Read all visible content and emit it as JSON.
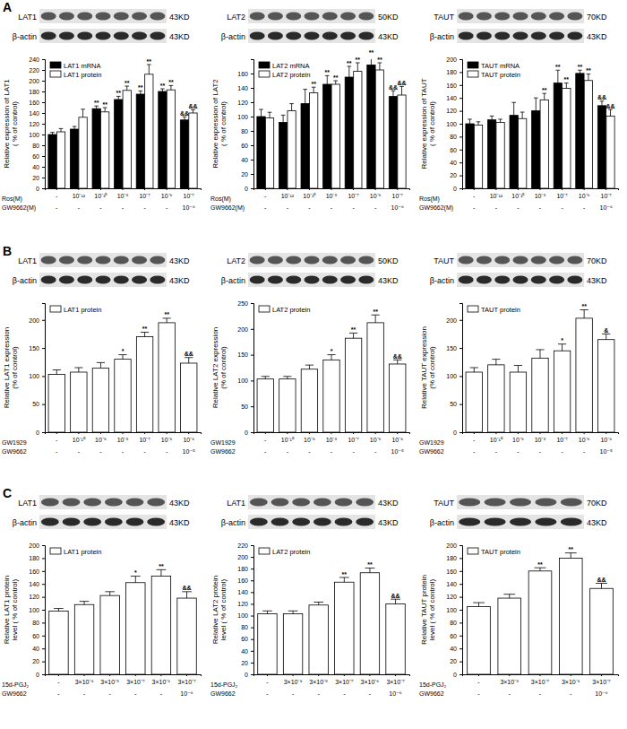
{
  "panel_labels": [
    "A",
    "B",
    "C"
  ],
  "chart_data": [
    {
      "type": "bar",
      "blots": [
        {
          "label": "LAT1",
          "size": "43KD"
        },
        {
          "label": "β-actin",
          "size": "43KD"
        }
      ],
      "ylabel": [
        "Relative expression of LAT1",
        "( % of control)"
      ],
      "ylim": [
        0,
        240
      ],
      "yticks": [
        0,
        20,
        40,
        60,
        80,
        100,
        120,
        140,
        160,
        180,
        200,
        220,
        240
      ],
      "x_titles": [
        "Ros(M)",
        "GW9662(M)"
      ],
      "categories": [
        "-",
        "10⁻¹²",
        "10⁻¹⁰",
        "10⁻⁸",
        "10⁻⁷",
        "10⁻⁶",
        "10⁻⁷"
      ],
      "categories_2": [
        "-",
        "-",
        "-",
        "-",
        "-",
        "-",
        "10⁻⁶"
      ],
      "legend": "top-left",
      "series": [
        {
          "name": "LAT1 mRNA",
          "color": "#000000",
          "values": [
            100,
            110,
            148,
            165,
            175,
            180,
            127
          ],
          "errors": [
            4,
            5,
            5,
            6,
            6,
            5,
            6
          ],
          "sig": [
            null,
            null,
            "**",
            "**",
            "**",
            "**",
            "&&"
          ]
        },
        {
          "name": "LAT1 protein",
          "color": "#ffffff",
          "values": [
            105,
            132,
            142,
            182,
            212,
            183,
            140
          ],
          "errors": [
            6,
            15,
            8,
            8,
            18,
            8,
            6
          ],
          "sig": [
            null,
            null,
            "**",
            "**",
            "**",
            "**",
            "&&"
          ]
        }
      ]
    },
    {
      "type": "bar",
      "blots": [
        {
          "label": "LAT2",
          "size": "50KD"
        },
        {
          "label": "β-actin",
          "size": "43KD"
        }
      ],
      "ylabel": [
        "Relative expression of LAT2",
        "( % of control)"
      ],
      "ylim": [
        0,
        180
      ],
      "yticks": [
        0,
        20,
        40,
        60,
        80,
        100,
        120,
        140,
        160
      ],
      "x_titles": [
        "Ros(M)",
        "GW9662(M)"
      ],
      "categories": [
        "-",
        "10⁻¹²",
        "10⁻¹⁰",
        "10⁻⁸",
        "10⁻⁷",
        "10⁻⁶",
        "10⁻⁷"
      ],
      "categories_2": [
        "-",
        "-",
        "-",
        "-",
        "-",
        "-",
        "10⁻⁶"
      ],
      "legend": "top-left",
      "series": [
        {
          "name": "LAT2 mRNA",
          "color": "#000000",
          "values": [
            100,
            92,
            118,
            145,
            155,
            172,
            128
          ],
          "errors": [
            10,
            10,
            20,
            12,
            15,
            12,
            8
          ],
          "sig": [
            null,
            null,
            null,
            "**",
            "**",
            "**",
            "&&"
          ]
        },
        {
          "name": "LAT2 protein",
          "color": "#ffffff",
          "values": [
            98,
            108,
            133,
            145,
            163,
            165,
            130
          ],
          "errors": [
            8,
            10,
            8,
            5,
            12,
            10,
            12
          ],
          "sig": [
            null,
            null,
            "**",
            "**",
            "**",
            "**",
            "&&"
          ]
        }
      ]
    },
    {
      "type": "bar",
      "blots": [
        {
          "label": "TAUT",
          "size": "70KD"
        },
        {
          "label": "β-actin",
          "size": "43KD"
        }
      ],
      "ylabel": [
        "Relative expression of TAUT",
        "( % of control)"
      ],
      "ylim": [
        0,
        200
      ],
      "yticks": [
        0,
        20,
        40,
        60,
        80,
        100,
        120,
        140,
        160,
        180,
        200
      ],
      "x_titles": [
        "Ros(M)",
        "GW9662(M)"
      ],
      "categories": [
        "-",
        "10⁻¹²",
        "10⁻¹⁰",
        "10⁻⁸",
        "10⁻⁷",
        "10⁻⁶",
        "10⁻⁷"
      ],
      "categories_2": [
        "-",
        "-",
        "-",
        "-",
        "-",
        "-",
        "10⁻⁶"
      ],
      "legend": "top-left",
      "series": [
        {
          "name": "TAUT mRNA",
          "color": "#000000",
          "values": [
            100,
            106,
            113,
            120,
            163,
            178,
            128
          ],
          "errors": [
            7,
            6,
            20,
            20,
            20,
            5,
            7
          ],
          "sig": [
            null,
            null,
            null,
            null,
            "**",
            "**",
            "&&"
          ]
        },
        {
          "name": "TAUT protein",
          "color": "#ffffff",
          "values": [
            98,
            102,
            108,
            137,
            155,
            167,
            112
          ],
          "errors": [
            5,
            5,
            10,
            10,
            8,
            10,
            10
          ],
          "sig": [
            null,
            null,
            null,
            "**",
            "**",
            "**",
            "&&"
          ]
        }
      ]
    },
    {
      "type": "bar",
      "blots": [
        {
          "label": "LAT1",
          "size": "43KD"
        },
        {
          "label": "β-actin",
          "size": "43KD"
        }
      ],
      "ylabel": [
        "Relative LAT1 expression",
        "(% of control)"
      ],
      "ylim": [
        0,
        230
      ],
      "yticks": [
        0,
        50,
        100,
        150,
        200
      ],
      "x_titles": [
        "GW1929",
        "GW9662"
      ],
      "categories": [
        "-",
        "10⁻¹⁰",
        "10⁻⁹",
        "10⁻⁸",
        "10⁻⁷",
        "10⁻⁶",
        "10⁻⁶"
      ],
      "categories_2": [
        "-",
        "-",
        "-",
        "-",
        "-",
        "-",
        "10⁻⁵"
      ],
      "legend": "top-left",
      "series": [
        {
          "name": "LAT1 protein",
          "color": "#ffffff",
          "values": [
            103,
            107,
            114,
            130,
            170,
            195,
            123
          ],
          "errors": [
            8,
            8,
            10,
            8,
            8,
            8,
            10
          ],
          "sig": [
            null,
            null,
            null,
            "*",
            "**",
            "**",
            "&&"
          ]
        }
      ]
    },
    {
      "type": "bar",
      "blots": [
        {
          "label": "LAT2",
          "size": "50KD"
        },
        {
          "label": "β-actin",
          "size": "43KD"
        }
      ],
      "ylabel": [
        "Relative LAT2 expression",
        "(% of control)"
      ],
      "ylim": [
        0,
        250
      ],
      "yticks": [
        0,
        50,
        100,
        150,
        200,
        250
      ],
      "x_titles": [
        "GW1929",
        "GW9662"
      ],
      "categories": [
        "-",
        "10⁻¹⁰",
        "10⁻⁹",
        "10⁻⁸",
        "10⁻⁷",
        "10⁻⁶",
        "10⁻⁶"
      ],
      "categories_2": [
        "-",
        "-",
        "-",
        "-",
        "-",
        "-",
        "10⁻⁵"
      ],
      "legend": "top-left",
      "series": [
        {
          "name": "LAT2 protein",
          "color": "#ffffff",
          "values": [
            103,
            103,
            122,
            140,
            182,
            212,
            132
          ],
          "errors": [
            5,
            5,
            8,
            10,
            10,
            15,
            8
          ],
          "sig": [
            null,
            null,
            null,
            "*",
            "**",
            "**",
            "&&"
          ]
        }
      ]
    },
    {
      "type": "bar",
      "blots": [
        {
          "label": "TAUT",
          "size": "70KD"
        },
        {
          "label": "β-actin",
          "size": "43KD"
        }
      ],
      "ylabel": [
        "Relative TAUT expression",
        "(% of control)"
      ],
      "ylim": [
        0,
        230
      ],
      "yticks": [
        0,
        50,
        100,
        150,
        200
      ],
      "x_titles": [
        "GW1929",
        "GW9662"
      ],
      "categories": [
        "-",
        "10⁻¹⁰",
        "10⁻⁹",
        "10⁻⁸",
        "10⁻⁷",
        "10⁻⁶",
        "10⁻⁶"
      ],
      "categories_2": [
        "-",
        "-",
        "-",
        "-",
        "-",
        "-",
        "10⁻⁵"
      ],
      "legend": "top-left",
      "series": [
        {
          "name": "TAUT protein",
          "color": "#ffffff",
          "values": [
            107,
            120,
            107,
            132,
            145,
            203,
            165
          ],
          "errors": [
            8,
            10,
            12,
            15,
            12,
            15,
            10
          ],
          "sig": [
            null,
            null,
            null,
            null,
            "*",
            "**",
            "&"
          ]
        }
      ]
    },
    {
      "type": "bar",
      "blots": [
        {
          "label": "LAT1",
          "size": "43KD"
        },
        {
          "label": "β-actin",
          "size": "43KD"
        }
      ],
      "ylabel": [
        "Relative LAT1 protein",
        "level ( % of control)"
      ],
      "ylim": [
        0,
        200
      ],
      "yticks": [
        0,
        20,
        40,
        60,
        80,
        100,
        120,
        140,
        160,
        180,
        200
      ],
      "x_titles": [
        "15d-PGJ₂",
        "GW9662"
      ],
      "categories": [
        "-",
        "3×10⁻⁹",
        "3×10⁻⁸",
        "3×10⁻⁷",
        "3×10⁻⁶",
        "3×10⁻⁷"
      ],
      "categories_2": [
        "-",
        "-",
        "-",
        "-",
        "-",
        "10⁻⁶"
      ],
      "legend": "top-left",
      "series": [
        {
          "name": "LAT1 protein",
          "color": "#ffffff",
          "values": [
            98,
            108,
            122,
            142,
            152,
            118
          ],
          "errors": [
            4,
            5,
            6,
            10,
            10,
            10
          ],
          "sig": [
            null,
            null,
            null,
            "*",
            "**",
            "&&"
          ]
        }
      ]
    },
    {
      "type": "bar",
      "blots": [
        {
          "label": "LAT1",
          "size": "43KD"
        },
        {
          "label": "β-actin",
          "size": "43KD"
        }
      ],
      "ylabel": [
        "Relative LAT2 protein",
        "level ( % of control)"
      ],
      "ylim": [
        0,
        220
      ],
      "yticks": [
        0,
        20,
        40,
        60,
        80,
        100,
        120,
        140,
        160,
        180,
        200,
        220
      ],
      "x_titles": [
        "15d-PGJ₂",
        "GW9662"
      ],
      "categories": [
        "-",
        "3×10⁻⁹",
        "3×10⁻⁸",
        "3×10⁻⁷",
        "3×10⁻⁶",
        "3×10⁻⁷"
      ],
      "categories_2": [
        "-",
        "-",
        "-",
        "-",
        "-",
        "10⁻⁶"
      ],
      "legend": "top-left",
      "series": [
        {
          "name": "LAT2 protein",
          "color": "#ffffff",
          "values": [
            103,
            103,
            118,
            157,
            173,
            120
          ],
          "errors": [
            5,
            5,
            5,
            8,
            8,
            8
          ],
          "sig": [
            null,
            null,
            null,
            "**",
            "**",
            "&&"
          ]
        }
      ]
    },
    {
      "type": "bar",
      "blots": [
        {
          "label": "TAUT",
          "size": "70KD"
        },
        {
          "label": "β-actin",
          "size": "43KD"
        }
      ],
      "ylabel": [
        "Relative TAUT protein",
        "level ( % of control)"
      ],
      "ylim": [
        0,
        200
      ],
      "yticks": [
        0,
        20,
        40,
        60,
        80,
        100,
        120,
        140,
        160,
        180,
        200
      ],
      "x_titles": [
        "15d-PGJ₂",
        "GW9662"
      ],
      "categories": [
        "-",
        "3×10⁻⁸",
        "3×10⁻⁷",
        "3×10⁻⁶",
        "3×10⁻⁷"
      ],
      "categories_2": [
        "-",
        "-",
        "-",
        "-",
        "10⁻⁶"
      ],
      "legend": "top-left",
      "series": [
        {
          "name": "TAUT protein",
          "color": "#ffffff",
          "values": [
            105,
            118,
            160,
            180,
            133
          ],
          "errors": [
            6,
            6,
            5,
            8,
            8
          ],
          "sig": [
            null,
            null,
            "**",
            "**",
            "&&"
          ]
        }
      ]
    }
  ]
}
